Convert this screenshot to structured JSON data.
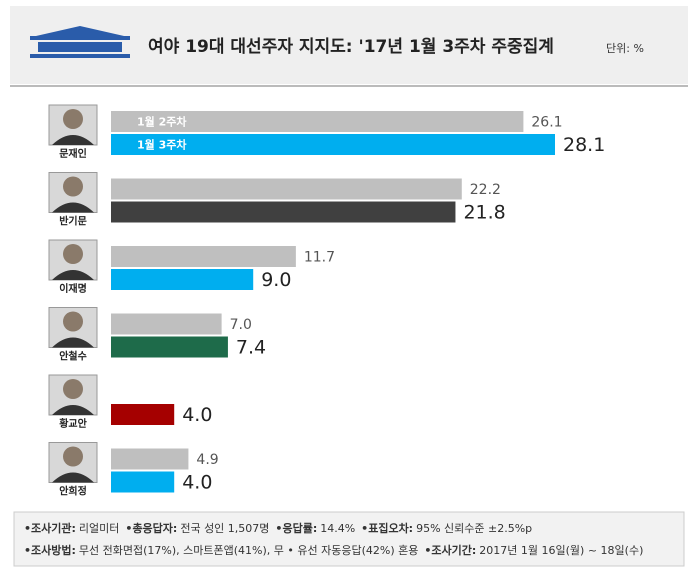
{
  "chart_data": {
    "type": "bar",
    "orientation": "horizontal",
    "title": "여야 19대 대선주자 지지도: '17년 1월 3주차 주중집계",
    "unit": "단위: %",
    "categories": [
      "문재인",
      "반기문",
      "이재명",
      "안철수",
      "황교안",
      "안희정"
    ],
    "series": [
      {
        "name": "1월 2주차",
        "color": "#bfbfbf",
        "values": [
          26.1,
          22.2,
          11.7,
          7.0,
          null,
          4.9
        ],
        "value_labels": [
          "26.1",
          "22.2",
          "11.7",
          "7.0",
          null,
          "4.9"
        ]
      },
      {
        "name": "1월 3주차",
        "colors": [
          "#00aeef",
          "#404040",
          "#00aeef",
          "#1e6b4a",
          "#a50000",
          "#00aeef"
        ],
        "values": [
          28.1,
          21.8,
          9.0,
          7.4,
          4.0,
          4.0
        ],
        "value_labels": [
          "28.1",
          "21.8",
          "9.0",
          "7.4",
          "4.0",
          "4.0"
        ]
      }
    ],
    "notes": [
      [
        {
          "label": "조사기관:",
          "text": "리얼미터"
        },
        {
          "label": "총응답자:",
          "text": "전국 성인 1,507명"
        },
        {
          "label": "응답률:",
          "text": "14.4%"
        },
        {
          "label": "표집오차:",
          "text": "95% 신뢰수준 ±2.5%p"
        }
      ],
      [
        {
          "label": "조사방법:",
          "text": "무선 전화면접(17%), 스마트폰앱(41%), 무 • 유선 자동응답(42%) 혼용"
        },
        {
          "label": "조사기간:",
          "text": "2017년 1월 16일(월) ~ 18일(수)"
        }
      ]
    ]
  }
}
